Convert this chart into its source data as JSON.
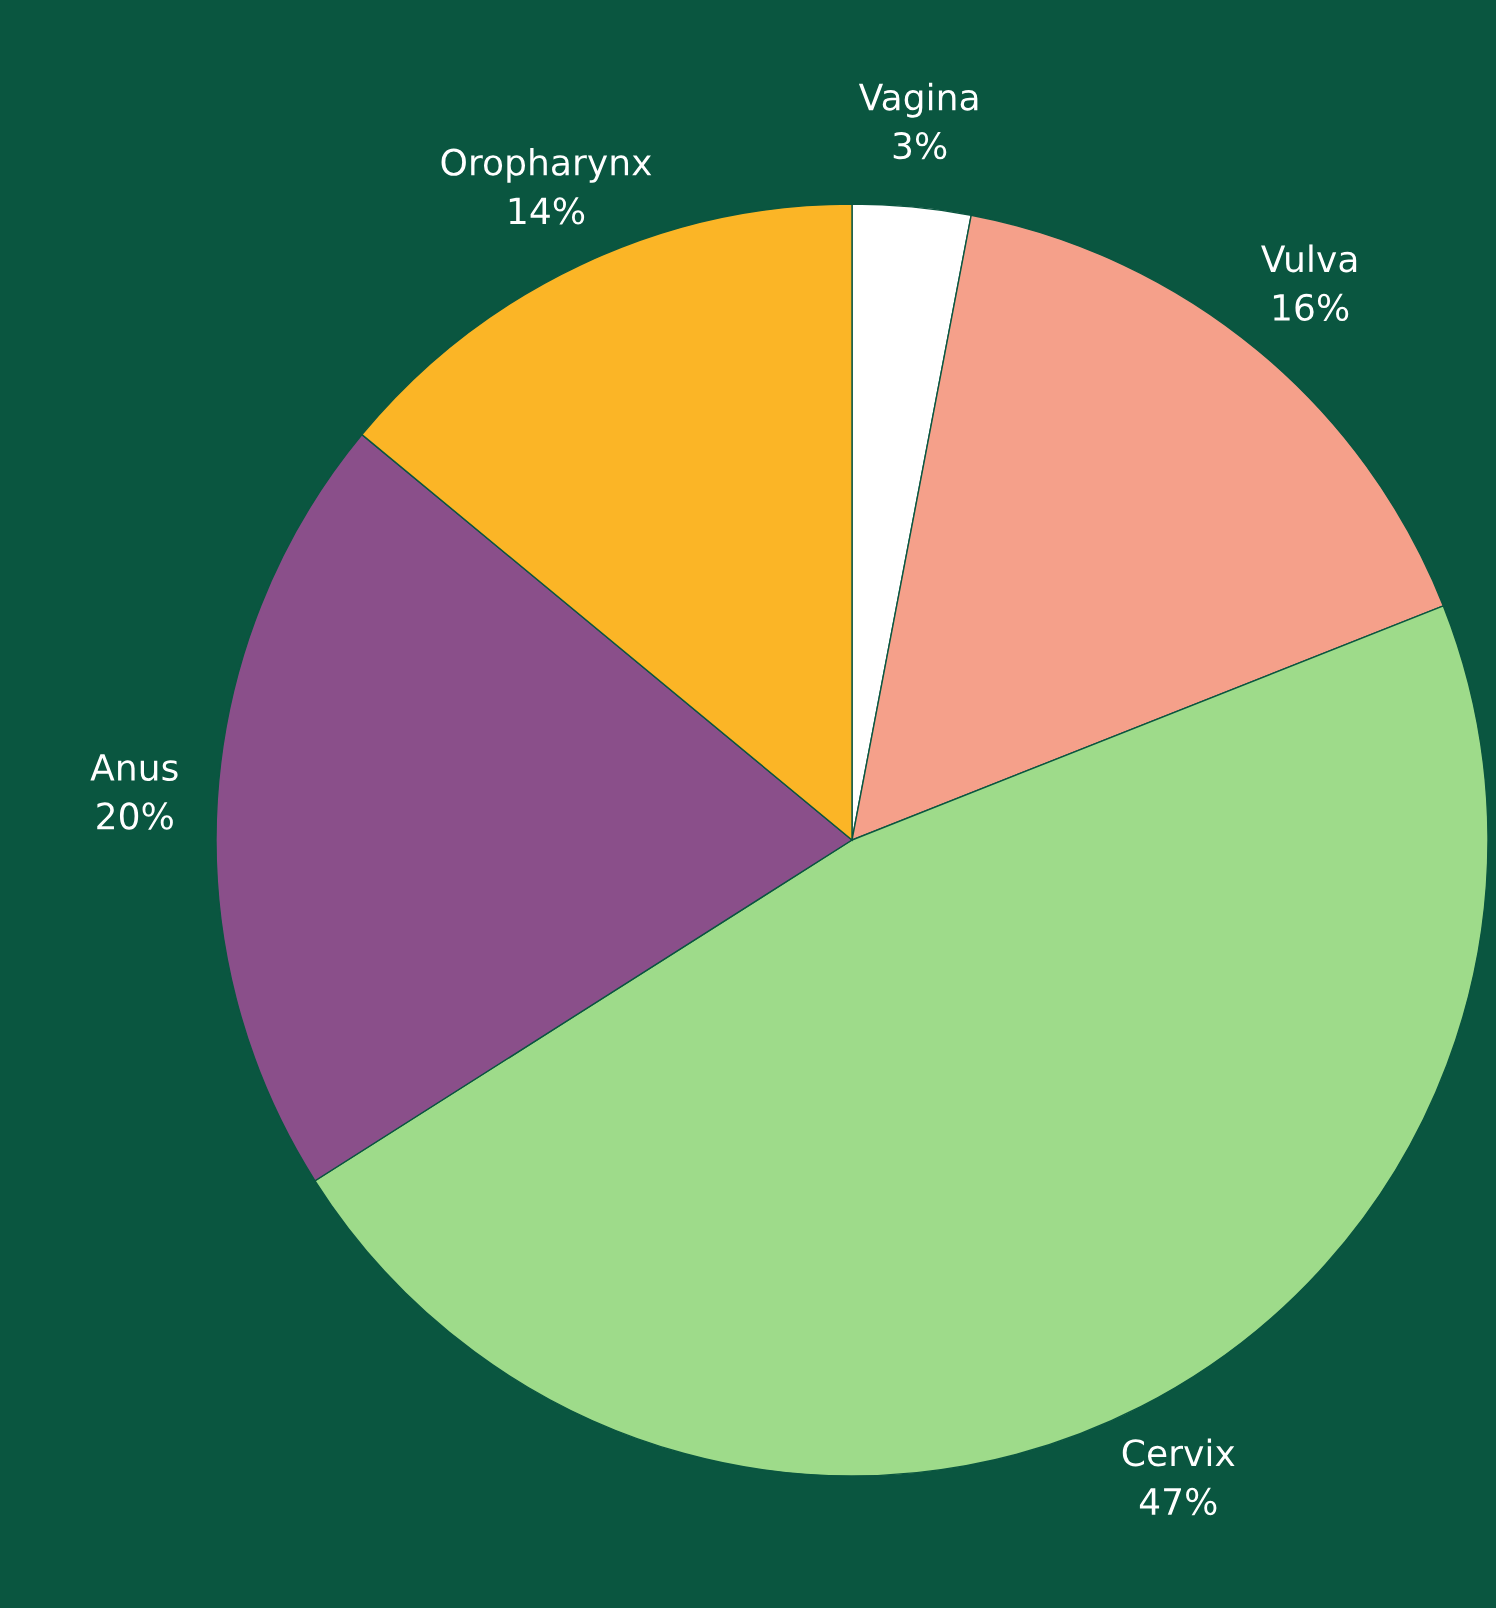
{
  "chart_data": {
    "type": "pie",
    "categories": [
      "Vagina",
      "Vulva",
      "Cervix",
      "Anus",
      "Oropharynx"
    ],
    "values": [
      3,
      16,
      47,
      20,
      14
    ],
    "colors": [
      "#ffffff",
      "#f5a08a",
      "#9edb8a",
      "#8a4f8a",
      "#fbb526"
    ],
    "value_labels": [
      "3%",
      "16%",
      "47%",
      "20%",
      "14%"
    ]
  }
}
